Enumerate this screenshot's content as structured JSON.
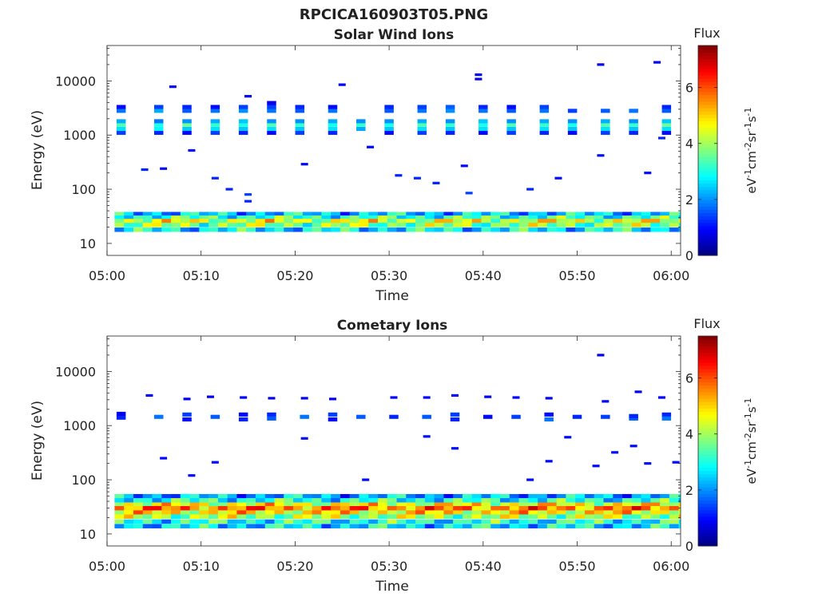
{
  "figure_title": "RPCICA160903T05.PNG",
  "chart_data": [
    {
      "type": "heatmap",
      "title": "Solar Wind Ions",
      "xlabel": "Time",
      "ylabel": "Energy (eV)",
      "x_ticks": [
        "05:00",
        "05:10",
        "05:20",
        "05:30",
        "05:40",
        "05:50",
        "06:00"
      ],
      "y_ticks": [
        "10",
        "100",
        "1000",
        "10000"
      ],
      "y_scale": "log",
      "ylim": [
        6,
        45000
      ],
      "xlim": [
        "05:00",
        "06:01"
      ],
      "colorbar": {
        "title": "Flux",
        "label": "eV-1cm-2sr-1s-1",
        "range": [
          0,
          7.5
        ],
        "ticks": [
          "0",
          "2",
          "4",
          "6"
        ],
        "colormap": "jet"
      },
      "rows": [
        {
          "t0": 0.8,
          "t1": 61,
          "e": 35,
          "flux": 2.4
        },
        {
          "t0": 0.8,
          "t1": 61,
          "e": 30,
          "flux": 3.2
        },
        {
          "t0": 0.8,
          "t1": 61,
          "e": 26,
          "flux": 4.4
        },
        {
          "t0": 0.8,
          "t1": 61,
          "e": 22,
          "flux": 3.8
        },
        {
          "t0": 0.8,
          "t1": 61,
          "e": 18,
          "flux": 2.7
        }
      ],
      "bursts": [
        {
          "t": 1.5,
          "e": [
            1100,
            1300,
            1550,
            1800,
            2800,
            3300
          ],
          "flux": [
            1.4,
            2.6,
            3.4,
            2.2,
            1.8,
            1.0
          ]
        },
        {
          "t": 5.5,
          "e": [
            1100,
            1300,
            1550,
            1800,
            2800,
            3300
          ],
          "flux": [
            1.2,
            2.8,
            3.0,
            1.8,
            2.2,
            1.4
          ]
        },
        {
          "t": 8.5,
          "e": [
            1100,
            1300,
            1550,
            1800,
            2800,
            3300
          ],
          "flux": [
            1.0,
            2.4,
            3.6,
            2.0,
            1.6,
            1.2
          ]
        },
        {
          "t": 11.5,
          "e": [
            1100,
            1300,
            1550,
            1800,
            2800,
            3300
          ],
          "flux": [
            1.4,
            2.6,
            3.2,
            2.2,
            1.8,
            1.0
          ]
        },
        {
          "t": 14.5,
          "e": [
            1100,
            1300,
            1550,
            1800,
            2800,
            3300
          ],
          "flux": [
            1.2,
            2.4,
            3.0,
            2.4,
            2.0,
            1.4
          ]
        },
        {
          "t": 17.5,
          "e": [
            1100,
            1300,
            1550,
            1800,
            2800,
            3300,
            3900
          ],
          "flux": [
            1.0,
            2.6,
            3.4,
            2.0,
            1.8,
            1.4,
            0.8
          ]
        },
        {
          "t": 20.5,
          "e": [
            1100,
            1300,
            1550,
            1800,
            2800,
            3300
          ],
          "flux": [
            1.4,
            2.4,
            3.2,
            2.0,
            1.6,
            1.2
          ]
        },
        {
          "t": 24.0,
          "e": [
            1100,
            1300,
            1550,
            1800,
            2800,
            3300
          ],
          "flux": [
            1.2,
            2.6,
            3.0,
            2.2,
            1.8,
            1.0
          ]
        },
        {
          "t": 27.0,
          "e": [
            1300,
            1550,
            1800
          ],
          "flux": [
            2.2,
            3.2,
            2.0
          ]
        },
        {
          "t": 30.0,
          "e": [
            1100,
            1300,
            1550,
            1800,
            2800,
            3300
          ],
          "flux": [
            1.0,
            2.4,
            3.0,
            2.0,
            1.6,
            1.2
          ]
        },
        {
          "t": 33.5,
          "e": [
            1100,
            1300,
            1550,
            1800,
            2800,
            3300
          ],
          "flux": [
            1.4,
            2.6,
            3.4,
            2.2,
            1.8,
            1.4
          ]
        },
        {
          "t": 36.5,
          "e": [
            1100,
            1300,
            1550,
            1800,
            2800,
            3300
          ],
          "flux": [
            1.2,
            2.4,
            3.2,
            2.0,
            2.0,
            1.6
          ]
        },
        {
          "t": 40.0,
          "e": [
            1100,
            1300,
            1550,
            1800,
            2800,
            3300
          ],
          "flux": [
            1.0,
            2.6,
            3.0,
            2.4,
            1.8,
            1.2
          ]
        },
        {
          "t": 43.0,
          "e": [
            1100,
            1300,
            1550,
            1800,
            2800,
            3300
          ],
          "flux": [
            1.4,
            2.4,
            3.4,
            2.0,
            1.6,
            1.0
          ]
        },
        {
          "t": 46.5,
          "e": [
            1100,
            1300,
            1550,
            1800,
            2800,
            3300
          ],
          "flux": [
            1.2,
            2.6,
            3.2,
            2.2,
            1.8,
            1.4
          ]
        },
        {
          "t": 49.5,
          "e": [
            1100,
            1300,
            1550,
            1800,
            2800
          ],
          "flux": [
            1.0,
            2.4,
            3.0,
            2.0,
            1.4
          ]
        },
        {
          "t": 53.0,
          "e": [
            1100,
            1300,
            1550,
            1800,
            2800
          ],
          "flux": [
            1.4,
            2.6,
            3.4,
            2.2,
            1.6
          ]
        },
        {
          "t": 56.0,
          "e": [
            1100,
            1300,
            1550,
            1800,
            2800
          ],
          "flux": [
            1.2,
            2.4,
            3.2,
            2.0,
            1.8
          ]
        },
        {
          "t": 59.5,
          "e": [
            1100,
            1300,
            1550,
            1800,
            2800,
            3300
          ],
          "flux": [
            1.0,
            2.6,
            3.6,
            2.4,
            1.6,
            1.2
          ]
        }
      ],
      "points": [
        {
          "t": 7,
          "e": 7800,
          "flux": 0.9
        },
        {
          "t": 15,
          "e": 5200,
          "flux": 0.9
        },
        {
          "t": 25,
          "e": 8500,
          "flux": 0.9
        },
        {
          "t": 39.5,
          "e": 13000,
          "flux": 0.8
        },
        {
          "t": 39.5,
          "e": 10800,
          "flux": 0.8
        },
        {
          "t": 52.5,
          "e": 20000,
          "flux": 0.8
        },
        {
          "t": 58.5,
          "e": 22000,
          "flux": 0.8
        },
        {
          "t": 4,
          "e": 230,
          "flux": 1.2
        },
        {
          "t": 6,
          "e": 240,
          "flux": 1.0
        },
        {
          "t": 9,
          "e": 520,
          "flux": 1.0
        },
        {
          "t": 11.5,
          "e": 160,
          "flux": 1.2
        },
        {
          "t": 13,
          "e": 100,
          "flux": 1.2
        },
        {
          "t": 15,
          "e": 80,
          "flux": 1.4
        },
        {
          "t": 15,
          "e": 60,
          "flux": 1.2
        },
        {
          "t": 21,
          "e": 290,
          "flux": 1.0
        },
        {
          "t": 28,
          "e": 600,
          "flux": 1.0
        },
        {
          "t": 31,
          "e": 180,
          "flux": 1.2
        },
        {
          "t": 33,
          "e": 160,
          "flux": 1.2
        },
        {
          "t": 35,
          "e": 130,
          "flux": 1.2
        },
        {
          "t": 38,
          "e": 270,
          "flux": 1.0
        },
        {
          "t": 38.5,
          "e": 85,
          "flux": 1.4
        },
        {
          "t": 45,
          "e": 100,
          "flux": 1.2
        },
        {
          "t": 48,
          "e": 160,
          "flux": 1.0
        },
        {
          "t": 52.5,
          "e": 420,
          "flux": 1.0
        },
        {
          "t": 57.5,
          "e": 200,
          "flux": 1.0
        },
        {
          "t": 59,
          "e": 880,
          "flux": 1.2
        }
      ]
    },
    {
      "type": "heatmap",
      "title": "Cometary Ions",
      "xlabel": "Time",
      "ylabel": "Energy (eV)",
      "x_ticks": [
        "05:00",
        "05:10",
        "05:20",
        "05:30",
        "05:40",
        "05:50",
        "06:00"
      ],
      "y_ticks": [
        "10",
        "100",
        "1000",
        "10000"
      ],
      "y_scale": "log",
      "ylim": [
        6,
        45000
      ],
      "xlim": [
        "05:00",
        "06:01"
      ],
      "colorbar": {
        "title": "Flux",
        "label": "eV-1cm-2sr-1s-1",
        "range": [
          0,
          7.5
        ],
        "ticks": [
          "0",
          "2",
          "4",
          "6"
        ],
        "colormap": "jet"
      },
      "rows": [
        {
          "t0": 0.8,
          "t1": 61,
          "e": 50,
          "flux": 2.2
        },
        {
          "t0": 0.8,
          "t1": 61,
          "e": 42,
          "flux": 3.0
        },
        {
          "t0": 0.8,
          "t1": 61,
          "e": 35,
          "flux": 4.6
        },
        {
          "t0": 0.8,
          "t1": 61,
          "e": 30,
          "flux": 5.6
        },
        {
          "t0": 0.8,
          "t1": 61,
          "e": 25,
          "flux": 4.8
        },
        {
          "t0": 0.8,
          "t1": 61,
          "e": 21,
          "flux": 4.0
        },
        {
          "t0": 0.8,
          "t1": 61,
          "e": 17,
          "flux": 3.0
        },
        {
          "t0": 0.8,
          "t1": 61,
          "e": 14,
          "flux": 2.6
        }
      ],
      "bursts": [
        {
          "t": 1.5,
          "e": [
            1400,
            1650
          ],
          "flux": [
            1.2,
            0.8
          ]
        },
        {
          "t": 5.5,
          "e": [
            1450
          ],
          "flux": [
            1.8
          ]
        },
        {
          "t": 8.5,
          "e": [
            1300,
            1600
          ],
          "flux": [
            1.0,
            1.4
          ]
        },
        {
          "t": 11.5,
          "e": [
            1450
          ],
          "flux": [
            1.6
          ]
        },
        {
          "t": 14.5,
          "e": [
            1300,
            1600
          ],
          "flux": [
            1.2,
            1.0
          ]
        },
        {
          "t": 17.5,
          "e": [
            1350,
            1600
          ],
          "flux": [
            1.6,
            1.2
          ]
        },
        {
          "t": 21,
          "e": [
            1450
          ],
          "flux": [
            1.8
          ]
        },
        {
          "t": 24,
          "e": [
            1300,
            1600
          ],
          "flux": [
            1.0,
            1.4
          ]
        },
        {
          "t": 27,
          "e": [
            1450
          ],
          "flux": [
            1.6
          ]
        },
        {
          "t": 30.5,
          "e": [
            1450
          ],
          "flux": [
            1.2
          ]
        },
        {
          "t": 34,
          "e": [
            1450
          ],
          "flux": [
            1.6
          ]
        },
        {
          "t": 37,
          "e": [
            1300,
            1600
          ],
          "flux": [
            1.2,
            1.4
          ]
        },
        {
          "t": 40.5,
          "e": [
            1450
          ],
          "flux": [
            1.0
          ]
        },
        {
          "t": 43.5,
          "e": [
            1450
          ],
          "flux": [
            1.4
          ]
        },
        {
          "t": 47,
          "e": [
            1300,
            1600
          ],
          "flux": [
            1.8,
            1.0
          ]
        },
        {
          "t": 50,
          "e": [
            1450
          ],
          "flux": [
            1.2
          ]
        },
        {
          "t": 53,
          "e": [
            1450
          ],
          "flux": [
            1.4
          ]
        },
        {
          "t": 56,
          "e": [
            1350,
            1500
          ],
          "flux": [
            1.6,
            1.2
          ]
        },
        {
          "t": 59.5,
          "e": [
            1350,
            1600
          ],
          "flux": [
            1.8,
            1.2
          ]
        }
      ],
      "points": [
        {
          "t": 4.5,
          "e": 3600,
          "flux": 0.9
        },
        {
          "t": 8.5,
          "e": 3100,
          "flux": 0.9
        },
        {
          "t": 11,
          "e": 3400,
          "flux": 0.9
        },
        {
          "t": 14.5,
          "e": 3300,
          "flux": 0.9
        },
        {
          "t": 17.5,
          "e": 3200,
          "flux": 0.9
        },
        {
          "t": 21,
          "e": 3200,
          "flux": 0.9
        },
        {
          "t": 24,
          "e": 3100,
          "flux": 0.9
        },
        {
          "t": 30.5,
          "e": 3300,
          "flux": 0.9
        },
        {
          "t": 34,
          "e": 3300,
          "flux": 0.9
        },
        {
          "t": 37,
          "e": 3600,
          "flux": 0.9
        },
        {
          "t": 40.5,
          "e": 3400,
          "flux": 0.9
        },
        {
          "t": 43.5,
          "e": 3300,
          "flux": 0.9
        },
        {
          "t": 47,
          "e": 3200,
          "flux": 0.9
        },
        {
          "t": 52.5,
          "e": 20000,
          "flux": 0.9
        },
        {
          "t": 53,
          "e": 2800,
          "flux": 0.9
        },
        {
          "t": 56.5,
          "e": 4200,
          "flux": 0.9
        },
        {
          "t": 59,
          "e": 3300,
          "flux": 0.9
        },
        {
          "t": 6,
          "e": 250,
          "flux": 1.0
        },
        {
          "t": 9,
          "e": 120,
          "flux": 1.0
        },
        {
          "t": 11.5,
          "e": 210,
          "flux": 1.0
        },
        {
          "t": 21,
          "e": 580,
          "flux": 1.0
        },
        {
          "t": 27.5,
          "e": 100,
          "flux": 1.0
        },
        {
          "t": 34,
          "e": 630,
          "flux": 1.0
        },
        {
          "t": 37,
          "e": 380,
          "flux": 1.0
        },
        {
          "t": 45,
          "e": 100,
          "flux": 1.0
        },
        {
          "t": 47,
          "e": 220,
          "flux": 1.0
        },
        {
          "t": 49,
          "e": 610,
          "flux": 1.0
        },
        {
          "t": 52,
          "e": 180,
          "flux": 1.0
        },
        {
          "t": 54,
          "e": 320,
          "flux": 1.0
        },
        {
          "t": 56,
          "e": 420,
          "flux": 1.0
        },
        {
          "t": 57.5,
          "e": 200,
          "flux": 1.0
        },
        {
          "t": 60.5,
          "e": 210,
          "flux": 1.0
        }
      ]
    }
  ]
}
